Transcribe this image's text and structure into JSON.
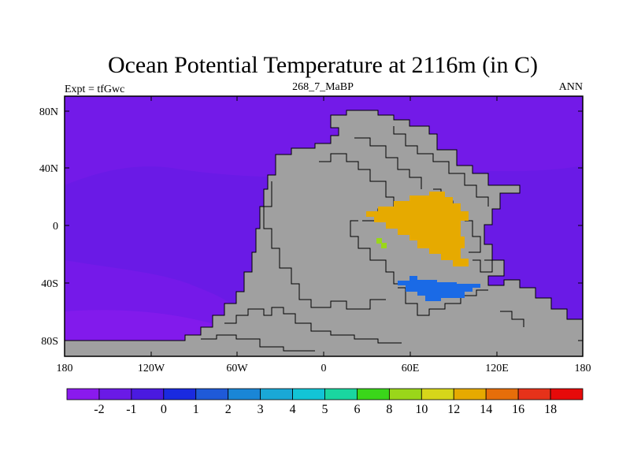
{
  "title": "Ocean Potential Temperature at 2116m (in C)",
  "subtitle": "268_7_MaBP",
  "left_label": "Expt = tfGwc",
  "right_label": "ANN",
  "lat_ticks": [
    "80N",
    "40N",
    "0",
    "40S",
    "80S"
  ],
  "lon_ticks": [
    "180",
    "120W",
    "60W",
    "0",
    "60E",
    "120E",
    "180"
  ],
  "colorbar": {
    "labels": [
      "-2",
      "-1",
      "0",
      "1",
      "2",
      "3",
      "4",
      "5",
      "6",
      "8",
      "10",
      "12",
      "14",
      "16",
      "18"
    ],
    "colors": [
      "#8a1aee",
      "#6a1ae6",
      "#4a1ae0",
      "#1a2ae0",
      "#1f5ad8",
      "#1a86d6",
      "#1aa8d6",
      "#12c4d6",
      "#1ad6a0",
      "#3ad61a",
      "#9ad61a",
      "#d6d61a",
      "#e6aa00",
      "#e66e0a",
      "#e6321a",
      "#e60a0a"
    ]
  },
  "colors": {
    "land": "#a0a0a0",
    "ocean_cold": "#6a1ae6",
    "ocean_coldest": "#8a1aee",
    "warm_basin": "#e6aa00",
    "blue_patch": "#1a6ae6",
    "green_dots": "#9ad61a"
  }
}
